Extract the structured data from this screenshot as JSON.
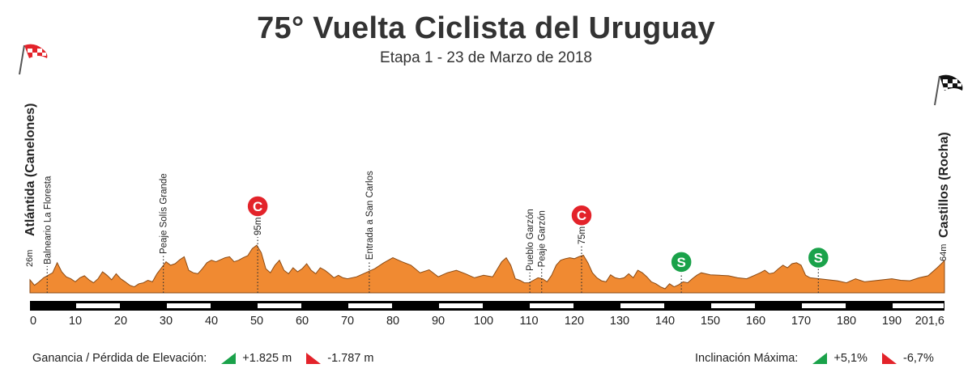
{
  "title": "75° Vuelta Ciclista del Uruguay",
  "subtitle": "Etapa 1 - 23 de Marzo de 2018",
  "start": {
    "name": "Atlántida (Canelones)",
    "altitude": "26m"
  },
  "finish": {
    "name": "Castillos (Rocha)",
    "altitude": "64m"
  },
  "footer": {
    "elevation_label": "Ganancia / Pérdida de Elevación:",
    "gain": "+1.825 m",
    "loss": "-1.787 m",
    "incline_label": "Inclinación Máxima:",
    "max_up": "+5,1%",
    "max_down": "-6,7%"
  },
  "colors": {
    "profile": "#f08a32",
    "climb_marker": "#e3232a",
    "sprint_marker": "#1aa24a",
    "gain_icon": "#1aa24a",
    "loss_icon": "#e3232a"
  },
  "chart_data": {
    "type": "area",
    "title": "75° Vuelta Ciclista del Uruguay",
    "subtitle": "Etapa 1 - 23 de Marzo de 2018",
    "xlabel": "",
    "ylabel": "",
    "xlim": [
      0,
      201.6
    ],
    "x_ticks": [
      0,
      10,
      20,
      30,
      40,
      50,
      60,
      70,
      80,
      90,
      100,
      110,
      120,
      130,
      140,
      150,
      160,
      170,
      180,
      190,
      201.6
    ],
    "x_tick_labels": [
      "0",
      "10",
      "20",
      "30",
      "40",
      "50",
      "60",
      "70",
      "80",
      "90",
      "100",
      "110",
      "120",
      "130",
      "140",
      "150",
      "160",
      "170",
      "180",
      "190",
      "201,6"
    ],
    "grid": false,
    "series": [
      {
        "x": [
          0,
          1,
          2,
          3,
          4,
          5,
          6,
          7,
          8,
          9,
          10,
          11,
          12,
          13,
          14,
          15,
          16,
          17,
          18,
          19,
          20,
          21,
          22,
          23,
          24,
          25,
          26,
          27,
          28,
          29,
          30,
          31,
          32,
          33,
          34,
          35,
          36,
          37,
          38,
          39,
          40,
          41,
          42,
          43,
          44,
          45,
          46,
          47,
          48,
          49,
          50,
          51,
          52,
          53,
          54,
          55,
          56,
          57,
          58,
          59,
          60,
          61,
          62,
          63,
          64,
          65,
          66,
          67,
          68,
          69,
          70,
          72,
          74,
          76,
          78,
          80,
          82,
          84,
          86,
          88,
          90,
          92,
          94,
          96,
          98,
          100,
          102,
          104,
          105,
          106,
          107,
          108,
          109,
          110,
          111,
          112,
          113,
          114,
          115,
          116,
          117,
          118,
          119,
          120,
          121,
          122,
          123,
          124,
          125,
          126,
          127,
          128,
          129,
          130,
          131,
          132,
          133,
          134,
          135,
          136,
          137,
          138,
          139,
          140,
          141,
          142,
          143,
          144,
          145,
          146,
          147,
          148,
          150,
          152,
          154,
          156,
          158,
          160,
          161,
          162,
          163,
          164,
          165,
          166,
          167,
          168,
          169,
          170,
          171,
          172,
          174,
          176,
          178,
          180,
          182,
          184,
          186,
          188,
          190,
          192,
          194,
          196,
          198,
          200,
          201.6
        ],
        "y": [
          26,
          15,
          22,
          30,
          35,
          40,
          60,
          42,
          32,
          28,
          22,
          30,
          34,
          26,
          20,
          28,
          42,
          35,
          26,
          38,
          28,
          22,
          15,
          12,
          18,
          20,
          25,
          22,
          38,
          50,
          62,
          55,
          58,
          66,
          72,
          45,
          40,
          38,
          48,
          60,
          65,
          62,
          66,
          70,
          72,
          62,
          65,
          70,
          74,
          88,
          95,
          80,
          48,
          40,
          55,
          65,
          45,
          38,
          50,
          42,
          48,
          58,
          45,
          38,
          50,
          45,
          38,
          30,
          35,
          30,
          28,
          32,
          40,
          48,
          60,
          70,
          62,
          55,
          40,
          46,
          32,
          40,
          45,
          38,
          30,
          35,
          32,
          62,
          70,
          55,
          28,
          25,
          20,
          20,
          25,
          30,
          28,
          22,
          35,
          55,
          65,
          68,
          70,
          68,
          72,
          75,
          60,
          40,
          30,
          24,
          22,
          36,
          30,
          28,
          30,
          38,
          30,
          45,
          40,
          32,
          22,
          18,
          12,
          8,
          18,
          12,
          16,
          22,
          20,
          28,
          35,
          40,
          36,
          35,
          34,
          30,
          28,
          36,
          40,
          45,
          38,
          40,
          48,
          55,
          50,
          58,
          60,
          55,
          35,
          30,
          28,
          26,
          24,
          20,
          28,
          22,
          24,
          26,
          28,
          25,
          24,
          30,
          34,
          50,
          64
        ]
      }
    ],
    "ylim": [
      0,
      110
    ],
    "annotations": [
      {
        "x": 3.8,
        "label": "Balneario La Floresta"
      },
      {
        "x": 29.4,
        "label": "Peaje Solís Grande"
      },
      {
        "x": 50.2,
        "label": "95m",
        "marker": "C"
      },
      {
        "x": 74.8,
        "label": "Entrada a San Carlos"
      },
      {
        "x": 110.2,
        "label": "Pueblo Garzón"
      },
      {
        "x": 112.8,
        "label": "Peaje Garzón"
      },
      {
        "x": 121.6,
        "label": "75m",
        "marker": "C"
      },
      {
        "x": 143.6,
        "marker": "S"
      },
      {
        "x": 173.8,
        "marker": "S"
      }
    ]
  }
}
